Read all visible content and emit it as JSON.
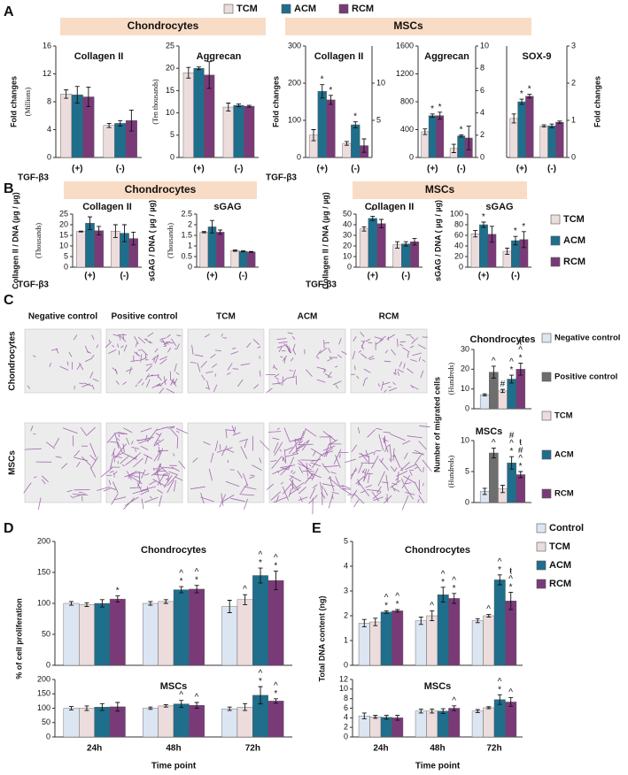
{
  "chart_data": [
    {
      "type": "bar",
      "panel": "A",
      "header": "Chondrocytes",
      "title": "Collagen II",
      "ylabel": "Fold changes",
      "yunit": "(Millions)",
      "xlabel": "TGF-β3",
      "categories": [
        "(+)",
        "(-)"
      ],
      "ylim": [
        0,
        16
      ],
      "yticks": [
        0,
        4,
        8,
        12,
        16
      ],
      "series": [
        {
          "name": "TCM",
          "color": "#ecdcdc",
          "values": [
            9.1,
            4.6
          ],
          "errors": [
            0.6,
            0.3
          ]
        },
        {
          "name": "ACM",
          "color": "#1f6e8c",
          "values": [
            9.0,
            4.9
          ],
          "errors": [
            1.2,
            0.4
          ]
        },
        {
          "name": "RCM",
          "color": "#7a3a78",
          "values": [
            8.7,
            5.3
          ],
          "errors": [
            1.4,
            1.5
          ]
        }
      ]
    },
    {
      "type": "bar",
      "title": "Aggrecan",
      "yunit": "(Ten thousands)",
      "categories": [
        "(+)",
        "(-)"
      ],
      "ylim": [
        0,
        25
      ],
      "yticks": [
        0,
        5,
        10,
        15,
        20,
        25
      ],
      "series": [
        {
          "color": "#ecdcdc",
          "values": [
            19,
            11.3
          ],
          "errors": [
            1.2,
            0.9
          ]
        },
        {
          "color": "#1f6e8c",
          "values": [
            20,
            11.7
          ],
          "errors": [
            0.3,
            0.3
          ]
        },
        {
          "color": "#7a3a78",
          "values": [
            18.5,
            11.5
          ],
          "errors": [
            3,
            0.2
          ]
        }
      ]
    },
    {
      "type": "bar",
      "header": "MSCs",
      "title": "Collagen II",
      "ylabel": "Fold changes",
      "xlabel": "TGF-β3",
      "categories": [
        "(+)",
        "(-)"
      ],
      "ylim": [
        0,
        300
      ],
      "yticks": [
        0,
        100,
        200,
        300
      ],
      "y2lim": [
        0,
        15
      ],
      "y2ticks": [
        5,
        10
      ],
      "series": [
        {
          "color": "#ecdcdc",
          "values": [
            60,
            38
          ],
          "errors": [
            15,
            5
          ]
        },
        {
          "color": "#1f6e8c",
          "values": [
            178,
            88
          ],
          "errors": [
            18,
            8
          ],
          "marks": [
            "*",
            "*"
          ]
        },
        {
          "color": "#7a3a78",
          "values": [
            155,
            32
          ],
          "errors": [
            12,
            18
          ],
          "marks": [
            "*",
            null
          ]
        }
      ]
    },
    {
      "type": "bar",
      "title": "Aggrecan",
      "categories": [
        "(+)",
        "(-)"
      ],
      "ylim": [
        0,
        1600
      ],
      "yticks": [
        0,
        400,
        800,
        1200,
        1600
      ],
      "y2lim": [
        0,
        10
      ],
      "y2ticks": [
        0,
        2,
        4,
        6,
        8,
        10
      ],
      "series": [
        {
          "color": "#ecdcdc",
          "values": [
            370,
            130
          ],
          "errors": [
            40,
            60
          ]
        },
        {
          "color": "#1f6e8c",
          "values": [
            600,
            310
          ],
          "errors": [
            25,
            15
          ],
          "marks": [
            "*",
            "*"
          ]
        },
        {
          "color": "#7a3a78",
          "values": [
            600,
            280
          ],
          "errors": [
            50,
            170
          ],
          "marks": [
            "*",
            null
          ]
        }
      ]
    },
    {
      "type": "bar",
      "title": "SOX-9",
      "ylabel": "Fold changes",
      "y_side": "right",
      "categories": [
        "(+)",
        "(-)"
      ],
      "ylim": [
        0,
        3
      ],
      "yticks": [
        0,
        1,
        2,
        3
      ],
      "series": [
        {
          "color": "#ecdcdc",
          "values": [
            1.05,
            0.85
          ],
          "errors": [
            0.12,
            0.03
          ]
        },
        {
          "color": "#1f6e8c",
          "values": [
            1.5,
            0.85
          ],
          "errors": [
            0.07,
            0.05
          ],
          "marks": [
            "*",
            null
          ]
        },
        {
          "color": "#7a3a78",
          "values": [
            1.65,
            0.95
          ],
          "errors": [
            0.05,
            0.03
          ],
          "marks": [
            "*",
            null
          ]
        }
      ]
    },
    {
      "type": "bar",
      "panel": "B",
      "header": "Chondrocytes",
      "title": "Collagen II",
      "ylabel": "Collagen II / DNA (µg / µg)",
      "yunit": "(Thousands)",
      "xlabel": "TGF-β3",
      "categories": [
        "(+)",
        "(-)"
      ],
      "ylim": [
        0,
        25
      ],
      "yticks": [
        0,
        5,
        10,
        15,
        20,
        25
      ],
      "series": [
        {
          "color": "#ecdcdc",
          "values": [
            16.8,
            17
          ],
          "errors": [
            0.2,
            3
          ]
        },
        {
          "color": "#1f6e8c",
          "values": [
            20.7,
            16
          ],
          "errors": [
            3,
            4
          ]
        },
        {
          "color": "#7a3a78",
          "values": [
            17.2,
            13.5
          ],
          "errors": [
            2,
            3
          ]
        }
      ]
    },
    {
      "type": "bar",
      "title": "sGAG",
      "ylabel": "sGAG / DNA ( µg / µg)",
      "yunit": "(Thousands)",
      "categories": [
        "(+)",
        "(-)"
      ],
      "ylim": [
        0,
        2.5
      ],
      "yticks": [
        0,
        0.5,
        1,
        1.5,
        2,
        2.5
      ],
      "series": [
        {
          "color": "#ecdcdc",
          "values": [
            1.65,
            0.78
          ],
          "errors": [
            0.03,
            0.03
          ]
        },
        {
          "color": "#1f6e8c",
          "values": [
            1.9,
            0.75
          ],
          "errors": [
            0.3,
            0.03
          ]
        },
        {
          "color": "#7a3a78",
          "values": [
            1.65,
            0.72
          ],
          "errors": [
            0.1,
            0.02
          ]
        }
      ]
    },
    {
      "type": "bar",
      "header": "MSCs",
      "title": "Collagen II",
      "ylabel": "Collagen II / DNA (µg / µg)",
      "xlabel": "TGF-β3",
      "categories": [
        "(+)",
        "(-)"
      ],
      "ylim": [
        0,
        50
      ],
      "yticks": [
        0,
        10,
        20,
        30,
        40,
        50
      ],
      "series": [
        {
          "color": "#ecdcdc",
          "values": [
            36,
            21
          ],
          "errors": [
            2,
            3
          ]
        },
        {
          "color": "#1f6e8c",
          "values": [
            46,
            22
          ],
          "errors": [
            2,
            2
          ],
          "marks": [
            "*",
            null
          ]
        },
        {
          "color": "#7a3a78",
          "values": [
            41,
            24
          ],
          "errors": [
            4,
            3
          ]
        }
      ]
    },
    {
      "type": "bar",
      "title": "sGAG",
      "ylabel": "sGAG / DNA ( µg / µg)",
      "categories": [
        "(+)",
        "(-)"
      ],
      "ylim": [
        0,
        100
      ],
      "yticks": [
        0,
        20,
        40,
        60,
        80,
        100
      ],
      "series": [
        {
          "name": "TCM",
          "color": "#ecdcdc",
          "values": [
            63,
            30
          ],
          "errors": [
            6,
            6
          ]
        },
        {
          "name": "ACM",
          "color": "#1f6e8c",
          "values": [
            80,
            50
          ],
          "errors": [
            5,
            8
          ],
          "marks": [
            "*",
            "*"
          ]
        },
        {
          "name": "RCM",
          "color": "#7a3a78",
          "values": [
            62,
            52
          ],
          "errors": [
            15,
            15
          ],
          "marks": [
            null,
            "*"
          ]
        }
      ]
    },
    {
      "type": "bar",
      "panel": "C",
      "title": "Chondrocytes",
      "ylabel": "Number of migrated cells",
      "yunit": "(Hundreds)",
      "ylim": [
        0,
        30
      ],
      "yticks": [
        0,
        10,
        20,
        30
      ],
      "series": [
        {
          "name": "Negative control",
          "color": "#dce6f2",
          "values": [
            7
          ],
          "errors": [
            0.5
          ]
        },
        {
          "name": "Positive control",
          "color": "#6e6e6e",
          "values": [
            18.5
          ],
          "errors": [
            3
          ],
          "marks": [
            "^"
          ]
        },
        {
          "name": "TCM",
          "color": "#ecdcdc",
          "values": [
            9
          ],
          "errors": [
            0.8
          ],
          "marks": [
            "#"
          ]
        },
        {
          "name": "ACM",
          "color": "#1f6e8c",
          "values": [
            15
          ],
          "errors": [
            2
          ],
          "marks": [
            "^*"
          ]
        },
        {
          "name": "RCM",
          "color": "#7a3a78",
          "values": [
            20
          ],
          "errors": [
            3
          ],
          "marks": [
            "ŧ^*"
          ]
        }
      ]
    },
    {
      "type": "bar",
      "title": "MSCs",
      "yunit": "(Hundreds)",
      "ylim": [
        0,
        10
      ],
      "yticks": [
        0,
        5,
        10
      ],
      "series": [
        {
          "color": "#dce6f2",
          "values": [
            1.8
          ],
          "errors": [
            0.5
          ]
        },
        {
          "color": "#6e6e6e",
          "values": [
            8
          ],
          "errors": [
            0.8
          ],
          "marks": [
            "^"
          ]
        },
        {
          "color": "#ecdcdc",
          "values": [
            2.2
          ],
          "errors": [
            0.6
          ]
        },
        {
          "color": "#1f6e8c",
          "values": [
            6.4
          ],
          "errors": [
            1
          ],
          "marks": [
            "#^*"
          ]
        },
        {
          "color": "#7a3a78",
          "values": [
            4.5
          ],
          "errors": [
            0.5
          ],
          "marks": [
            "ŧ#^*"
          ]
        }
      ]
    },
    {
      "type": "bar",
      "panel": "D",
      "title": "Chondrocytes",
      "ylabel": "% of cell proliferation",
      "ylim": [
        0,
        200
      ],
      "yticks": [
        0,
        50,
        100,
        150,
        200
      ],
      "series": [
        {
          "color": "#dce6f2",
          "values": [
            100,
            100,
            95
          ],
          "errors": [
            3,
            3,
            10
          ]
        },
        {
          "color": "#ecdcdc",
          "values": [
            98,
            103,
            106
          ],
          "errors": [
            3,
            3,
            8
          ],
          "marks": [
            null,
            null,
            "^"
          ]
        },
        {
          "color": "#1f6e8c",
          "values": [
            100,
            122,
            145
          ],
          "errors": [
            6,
            5,
            12
          ],
          "marks": [
            null,
            "^*",
            "^*"
          ]
        },
        {
          "color": "#7a3a78",
          "values": [
            107,
            123,
            137
          ],
          "errors": [
            5,
            6,
            15
          ],
          "marks": [
            "*",
            "^*",
            "^*"
          ]
        }
      ]
    },
    {
      "type": "bar",
      "title": "MSCs",
      "xlabel": "Time point",
      "categories": [
        "24h",
        "48h",
        "72h"
      ],
      "ylim": [
        0,
        200
      ],
      "yticks": [
        0,
        50,
        100,
        150,
        200
      ],
      "series": [
        {
          "color": "#dce6f2",
          "values": [
            100,
            100,
            98
          ],
          "errors": [
            6,
            4,
            6
          ]
        },
        {
          "color": "#ecdcdc",
          "values": [
            100,
            108,
            104
          ],
          "errors": [
            8,
            4,
            12
          ]
        },
        {
          "color": "#1f6e8c",
          "values": [
            104,
            115,
            145
          ],
          "errors": [
            12,
            12,
            30
          ],
          "marks": [
            null,
            "^",
            "^*"
          ]
        },
        {
          "color": "#7a3a78",
          "values": [
            105,
            110,
            125
          ],
          "errors": [
            15,
            10,
            8
          ],
          "marks": [
            null,
            "^",
            "^*"
          ]
        }
      ]
    },
    {
      "type": "bar",
      "panel": "E",
      "title": "Chondrocytes",
      "ylabel": "Total DNA content (ng)",
      "ylim": [
        0,
        5
      ],
      "yticks": [
        0,
        1,
        2,
        3,
        4,
        5
      ],
      "series": [
        {
          "name": "Control",
          "color": "#dce6f2",
          "values": [
            1.7,
            1.8,
            1.8
          ],
          "errors": [
            0.15,
            0.15,
            0.08
          ]
        },
        {
          "name": "TCM",
          "color": "#ecdcdc",
          "values": [
            1.75,
            2.0,
            2.0
          ],
          "errors": [
            0.15,
            0.2,
            0.05
          ],
          "marks": [
            null,
            "^",
            "^"
          ]
        },
        {
          "name": "ACM",
          "color": "#1f6e8c",
          "values": [
            2.15,
            2.85,
            3.45
          ],
          "errors": [
            0.05,
            0.3,
            0.2
          ],
          "marks": [
            "^*",
            "^*",
            "^*"
          ]
        },
        {
          "name": "RCM",
          "color": "#7a3a78",
          "values": [
            2.2,
            2.7,
            2.6
          ],
          "errors": [
            0.05,
            0.2,
            0.35
          ],
          "marks": [
            "^*",
            "^*",
            "ŧ^*"
          ]
        }
      ]
    },
    {
      "type": "bar",
      "title": "MSCs",
      "xlabel": "Time point",
      "categories": [
        "24h",
        "48h",
        "72h"
      ],
      "ylim": [
        0,
        12
      ],
      "yticks": [
        0,
        2,
        4,
        6,
        8,
        10,
        12
      ],
      "series": [
        {
          "color": "#dce6f2",
          "values": [
            4.4,
            5.4,
            5.4
          ],
          "errors": [
            0.6,
            0.4,
            0.3
          ]
        },
        {
          "color": "#ecdcdc",
          "values": [
            4.2,
            5.4,
            6.1
          ],
          "errors": [
            0.3,
            0.4,
            0.2
          ]
        },
        {
          "color": "#1f6e8c",
          "values": [
            4.1,
            5.4,
            7.8
          ],
          "errors": [
            0.4,
            0.5,
            1
          ],
          "marks": [
            null,
            null,
            "^*"
          ]
        },
        {
          "color": "#7a3a78",
          "values": [
            4.0,
            6.0,
            7.3
          ],
          "errors": [
            0.5,
            0.5,
            0.9
          ],
          "marks": [
            null,
            "^",
            "^"
          ]
        }
      ]
    }
  ],
  "micrographs": {
    "columns": [
      "Negative control",
      "Positive control",
      "TCM",
      "ACM",
      "RCM"
    ],
    "rows": [
      "Chondrocytes",
      "MSCs"
    ]
  }
}
